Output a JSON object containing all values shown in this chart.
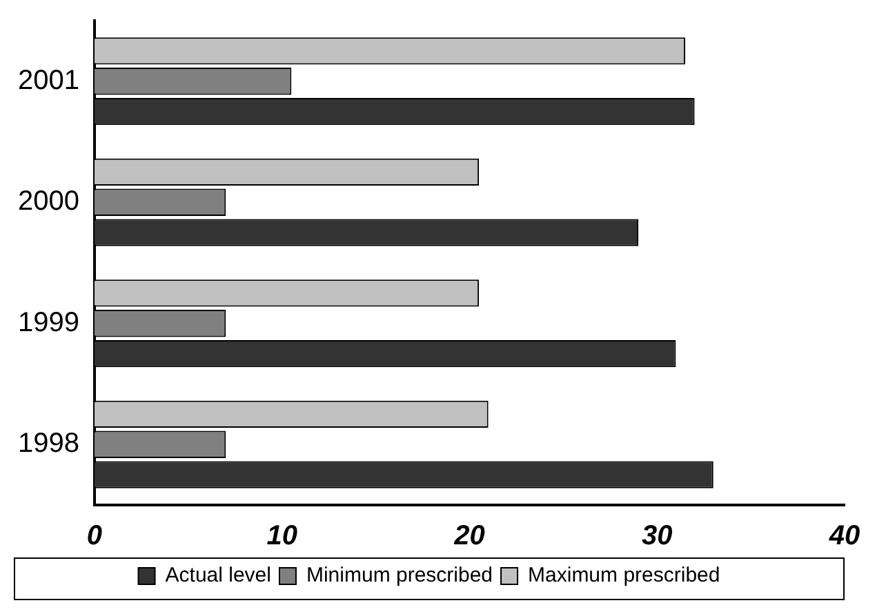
{
  "chart_data": {
    "type": "bar",
    "orientation": "horizontal",
    "categories": [
      "2001",
      "2000",
      "1999",
      "1998"
    ],
    "series": [
      {
        "name": "Maximum prescribed",
        "color": "#c0c0c0",
        "values": [
          31.5,
          20.5,
          20.5,
          21
        ]
      },
      {
        "name": "Minimum prescribed",
        "color": "#808080",
        "values": [
          10.5,
          7,
          7,
          7
        ]
      },
      {
        "name": "Actual level",
        "color": "#333333",
        "values": [
          32,
          29,
          31,
          33
        ]
      }
    ],
    "xlim": [
      0,
      40
    ],
    "xticks": [
      0,
      10,
      20,
      30,
      40
    ],
    "grid": false,
    "legend": "bottom"
  }
}
